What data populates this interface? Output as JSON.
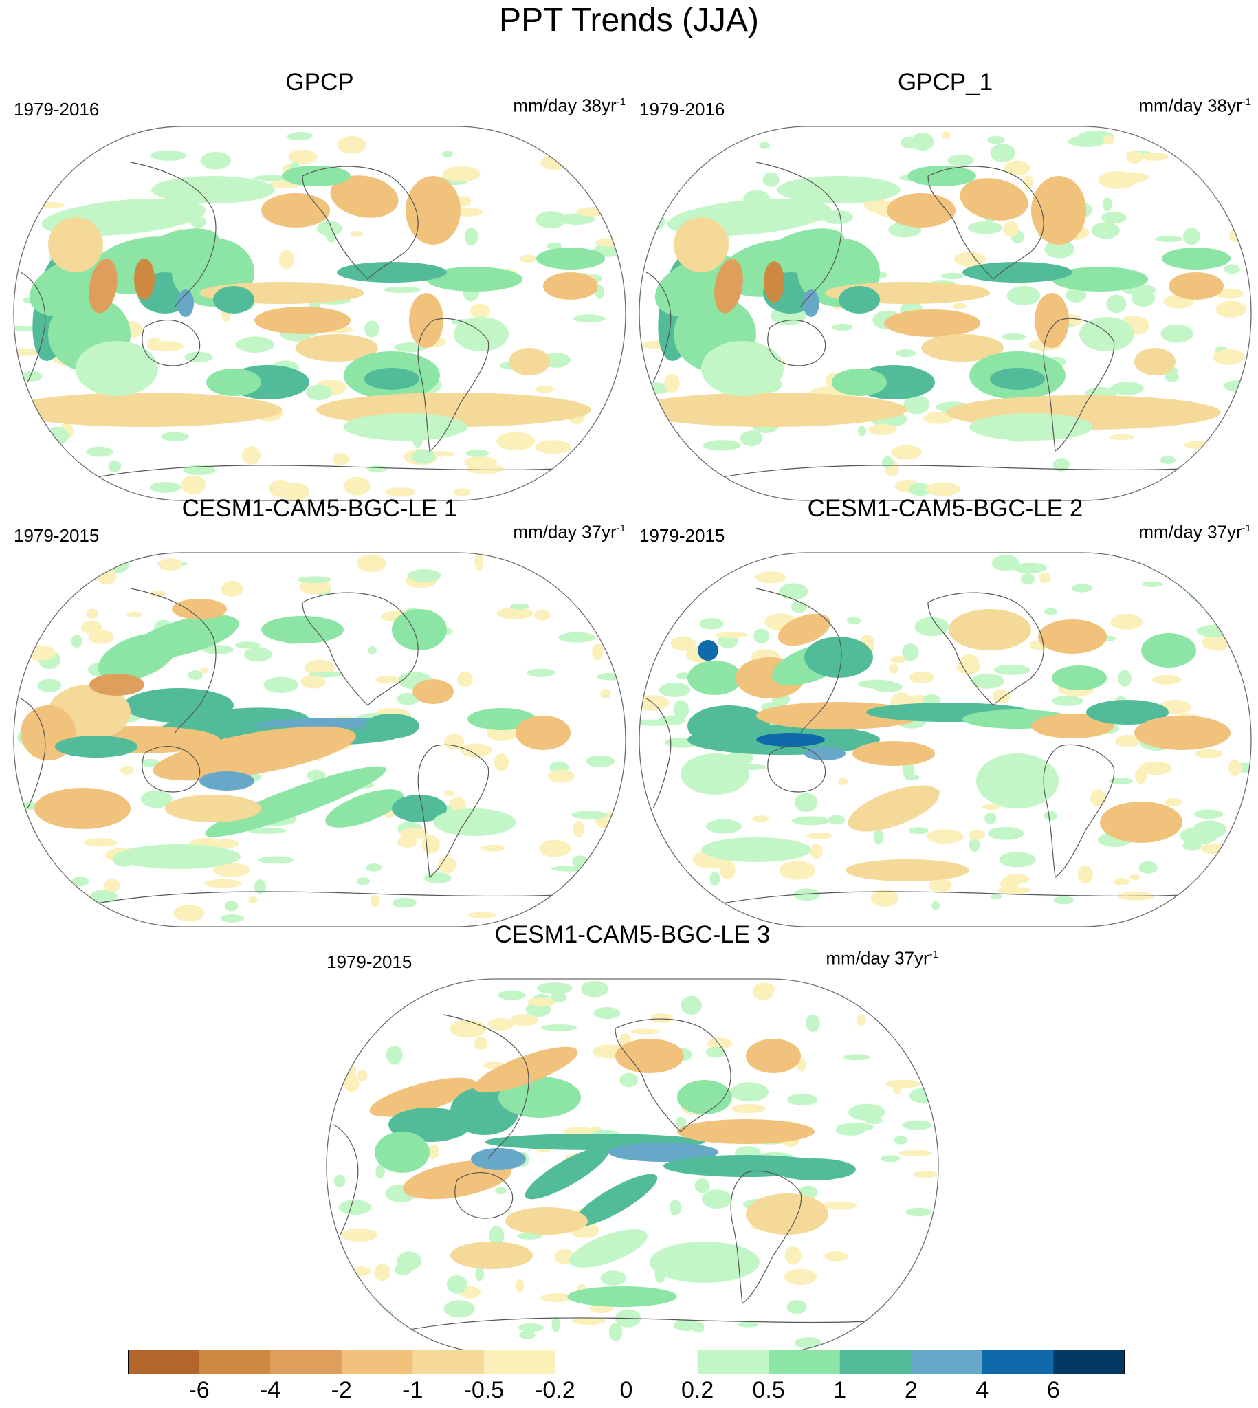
{
  "figure": {
    "title": "PPT Trends (JJA)"
  },
  "panels": [
    {
      "title": "GPCP",
      "period": "1979-2016",
      "units": "mm/day 38yr",
      "units_exp": "-1",
      "pattern": "gpcp"
    },
    {
      "title": "GPCP_1",
      "period": "1979-2016",
      "units": "mm/day 38yr",
      "units_exp": "-1",
      "pattern": "gpcp1"
    },
    {
      "title": "CESM1-CAM5-BGC-LE 1",
      "period": "1979-2015",
      "units": "mm/day 37yr",
      "units_exp": "-1",
      "pattern": "le1"
    },
    {
      "title": "CESM1-CAM5-BGC-LE 2",
      "period": "1979-2015",
      "units": "mm/day 37yr",
      "units_exp": "-1",
      "pattern": "le2"
    },
    {
      "title": "CESM1-CAM5-BGC-LE 3",
      "period": "1979-2015",
      "units": "mm/day 37yr",
      "units_exp": "-1",
      "pattern": "le3"
    }
  ],
  "colorbar": {
    "labels": [
      "-6",
      "-4",
      "-2",
      "-1",
      "-0.5",
      "-0.2",
      "0",
      "0.2",
      "0.5",
      "1",
      "2",
      "4",
      "6"
    ],
    "colors": [
      "#b2662b",
      "#cd8842",
      "#de9f5d",
      "#f0c27c",
      "#f4d999",
      "#fbefba",
      "#ffffff",
      "#ffffff",
      "#c3f6c6",
      "#8de5a5",
      "#52bc9a",
      "#67a8c9",
      "#0e6aaa",
      "#053961"
    ]
  }
}
